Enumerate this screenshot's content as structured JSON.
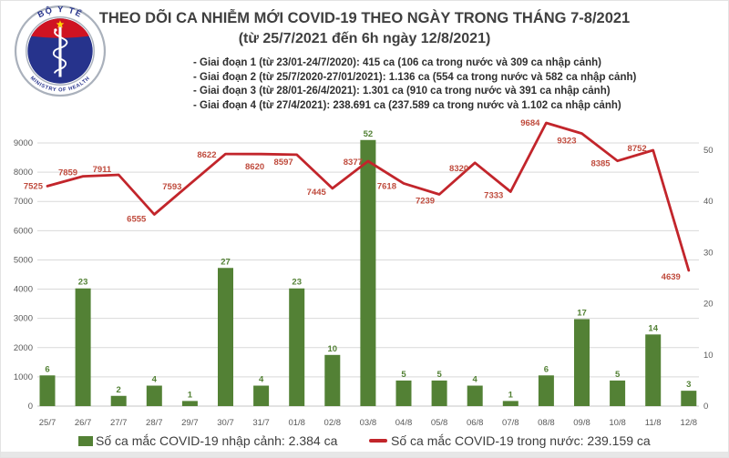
{
  "header": {
    "title": "THEO DÕI CA NHIỄM MỚI COVID-19 THEO NGÀY TRONG THÁNG 7-8/2021",
    "subtitle": "(từ 25/7/2021 đến 6h ngày 12/8/2021)",
    "phases": [
      {
        "text": "- Giai đoạn 1 (từ 23/01-24/7/2020): 415 ca (106 ca trong nước và 309 ca nhập cảnh)"
      },
      {
        "text": "- Giai đoạn 2 (từ 25/7/2020-27/01/2021): 1.136 ca (554 ca trong nước và 582 ca nhập cảnh)"
      },
      {
        "text": "- Giai đoạn 3 (từ 28/01-26/4/2021): 1.301 ca (910 ca trong nước và 391 ca nhập cảnh)"
      },
      {
        "text": "- Giai đoạn 4 (từ 27/4/2021): 238.691 ca (237.589 ca trong nước và 1.102 ca nhập cảnh)"
      }
    ]
  },
  "logo": {
    "top_text": "BỘ Y TẾ",
    "bottom_text": "MINISTRY OF HEALTH",
    "colors": {
      "ring": "#aab1bc",
      "navy": "#26338c",
      "red": "#cf1322",
      "star": "#ffd200"
    }
  },
  "chart_data": {
    "type": "bar+line",
    "categories": [
      "25/7",
      "26/7",
      "27/7",
      "28/7",
      "29/7",
      "30/7",
      "31/7",
      "01/8",
      "02/8",
      "03/8",
      "04/8",
      "05/8",
      "06/8",
      "07/8",
      "08/8",
      "09/8",
      "10/8",
      "11/8",
      "12/8"
    ],
    "series": [
      {
        "name": "Số ca mắc COVID-19 nhập cảnh",
        "type": "bar",
        "axis": "right",
        "color": "#538135",
        "values": [
          6,
          23,
          2,
          4,
          1,
          27,
          4,
          23,
          10,
          52,
          5,
          5,
          4,
          1,
          6,
          17,
          5,
          14,
          3
        ]
      },
      {
        "name": "Số ca mắc COVID-19 trong nước",
        "type": "line",
        "axis": "left",
        "color": "#c2252b",
        "values": [
          7525,
          7859,
          7911,
          6555,
          7593,
          8622,
          8620,
          8597,
          7445,
          8377,
          7618,
          7239,
          8320,
          7333,
          9684,
          9323,
          8385,
          8752,
          4639
        ]
      }
    ],
    "left_axis": {
      "min": 0,
      "max": 9000,
      "step": 1000
    },
    "right_axis": {
      "min": 0,
      "max": 50,
      "step": 10
    },
    "grid": true,
    "legend_position": "bottom",
    "label_color_line": "#bf4a3c",
    "axis_label_color": "#595959",
    "grid_color": "#d9d9d9",
    "line_label_offsets": [
      [
        "end",
        -5,
        3
      ],
      [
        "end",
        -6,
        -1
      ],
      [
        "end",
        -8,
        -3
      ],
      [
        "end",
        -9,
        8
      ],
      [
        "end",
        -9,
        6
      ],
      [
        "end",
        -10,
        4
      ],
      [
        "middle",
        -7,
        17
      ],
      [
        "end",
        -4,
        11
      ],
      [
        "end",
        -7,
        7
      ],
      [
        "end",
        -6,
        4
      ],
      [
        "end",
        -8,
        6
      ],
      [
        "end",
        -5,
        10
      ],
      [
        "end",
        -7,
        9
      ],
      [
        "end",
        -8,
        7
      ],
      [
        "end",
        -7,
        3
      ],
      [
        "end",
        -6,
        11
      ],
      [
        "end",
        -8,
        6
      ],
      [
        "end",
        -7,
        1
      ],
      [
        "end",
        -9,
        10
      ]
    ]
  },
  "legend": [
    {
      "marker": "square",
      "color": "#538135",
      "label": "Số ca mắc COVID-19 nhập cảnh: 2.384 ca"
    },
    {
      "marker": "line",
      "color": "#c2252b",
      "label": "Số ca mắc COVID-19 trong nước: 239.159 ca"
    }
  ]
}
